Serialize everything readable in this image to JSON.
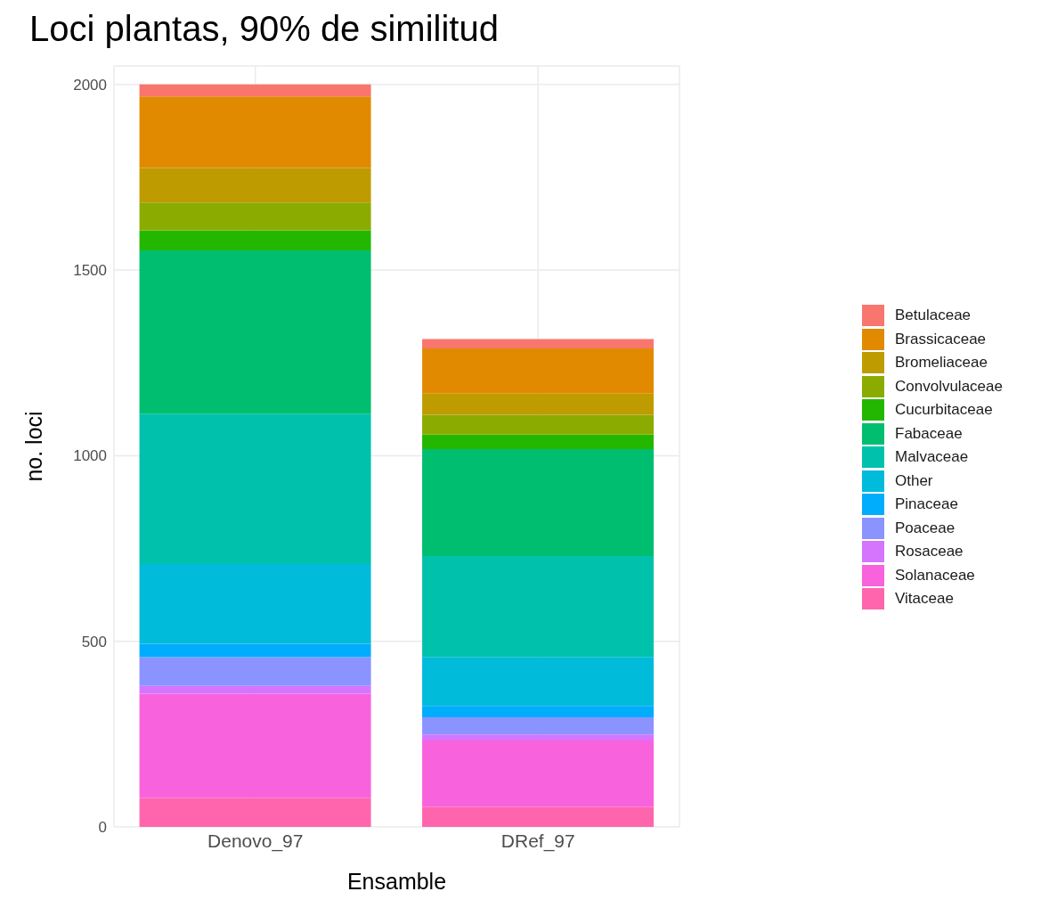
{
  "chart_data": {
    "type": "bar",
    "title": "Loci plantas,  90% de similitud",
    "xlabel": "Ensamble",
    "ylabel": "no. loci",
    "categories": [
      "Denovo_97",
      "DRef_97"
    ],
    "stacked": true,
    "ylim": [
      0,
      2050
    ],
    "yticks": [
      0,
      500,
      1000,
      1500,
      2000
    ],
    "grid": true,
    "legend": "right",
    "series": [
      {
        "name": "Vitaceae",
        "color": "#ff65ac",
        "values": [
          78,
          54
        ]
      },
      {
        "name": "Solanaceae",
        "color": "#f962dd",
        "values": [
          281,
          179
        ]
      },
      {
        "name": "Rosaceae",
        "color": "#d575fe",
        "values": [
          21,
          16
        ]
      },
      {
        "name": "Poaceae",
        "color": "#8b93ff",
        "values": [
          77,
          46
        ]
      },
      {
        "name": "Pinaceae",
        "color": "#00acfc",
        "values": [
          36,
          31
        ]
      },
      {
        "name": "Other",
        "color": "#00bbda",
        "values": [
          215,
          132
        ]
      },
      {
        "name": "Malvaceae",
        "color": "#00c1ab",
        "values": [
          405,
          272
        ]
      },
      {
        "name": "Fabaceae",
        "color": "#00be70",
        "values": [
          440,
          288
        ]
      },
      {
        "name": "Cucurbitaceae",
        "color": "#24b700",
        "values": [
          54,
          39
        ]
      },
      {
        "name": "Convolvulaceae",
        "color": "#8cab00",
        "values": [
          75,
          53
        ]
      },
      {
        "name": "Bromeliaceae",
        "color": "#be9c00",
        "values": [
          93,
          57
        ]
      },
      {
        "name": "Brassicaceae",
        "color": "#e18a00",
        "values": [
          193,
          122
        ]
      },
      {
        "name": "Betulaceae",
        "color": "#f8766d",
        "values": [
          32,
          25
        ]
      }
    ]
  }
}
